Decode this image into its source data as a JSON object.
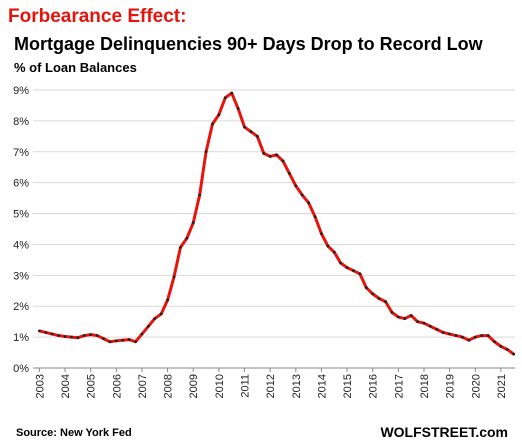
{
  "chart_data": {
    "type": "line",
    "title": "Forbearance Effect:",
    "subtitle": "Mortgage Delinquencies 90+ Days Drop to Record Low",
    "y_label": "% of Loan Balances",
    "source": "Source: New York Fed",
    "watermark": "WOLFSTREET.com",
    "x": [
      2003,
      2003.25,
      2003.5,
      2003.75,
      2004,
      2004.25,
      2004.5,
      2004.75,
      2005,
      2005.25,
      2005.5,
      2005.75,
      2006,
      2006.25,
      2006.5,
      2006.75,
      2007,
      2007.25,
      2007.5,
      2007.75,
      2008,
      2008.25,
      2008.5,
      2008.75,
      2009,
      2009.25,
      2009.5,
      2009.75,
      2010,
      2010.25,
      2010.5,
      2010.75,
      2011,
      2011.25,
      2011.5,
      2011.75,
      2012,
      2012.25,
      2012.5,
      2012.75,
      2013,
      2013.25,
      2013.5,
      2013.75,
      2014,
      2014.25,
      2014.5,
      2014.75,
      2015,
      2015.25,
      2015.5,
      2015.75,
      2016,
      2016.25,
      2016.5,
      2016.75,
      2017,
      2017.25,
      2017.5,
      2017.75,
      2018,
      2018.25,
      2018.5,
      2018.75,
      2019,
      2019.25,
      2019.5,
      2019.75,
      2020,
      2020.25,
      2020.5,
      2020.75,
      2021,
      2021.25,
      2021.5
    ],
    "series": [
      {
        "name": "Mortgage delinquencies 90+ days",
        "color": "#e8140c",
        "marker_color": "#222222",
        "values": [
          1.2,
          1.15,
          1.1,
          1.05,
          1.02,
          1.0,
          0.98,
          1.05,
          1.08,
          1.05,
          0.95,
          0.85,
          0.88,
          0.9,
          0.92,
          0.85,
          1.1,
          1.35,
          1.6,
          1.75,
          2.2,
          2.95,
          3.9,
          4.2,
          4.7,
          5.6,
          7.0,
          7.9,
          8.2,
          8.75,
          8.9,
          8.4,
          7.8,
          7.65,
          7.5,
          6.95,
          6.85,
          6.9,
          6.7,
          6.3,
          5.9,
          5.6,
          5.35,
          4.9,
          4.35,
          3.95,
          3.75,
          3.4,
          3.25,
          3.15,
          3.05,
          2.6,
          2.4,
          2.25,
          2.15,
          1.8,
          1.65,
          1.6,
          1.7,
          1.5,
          1.45,
          1.35,
          1.25,
          1.15,
          1.1,
          1.05,
          1.0,
          0.9,
          1.0,
          1.05,
          1.05,
          0.85,
          0.7,
          0.6,
          0.45
        ]
      }
    ],
    "xlim": [
      2002.75,
      2021.55
    ],
    "xticks": [
      2003,
      2004,
      2005,
      2006,
      2007,
      2008,
      2009,
      2010,
      2011,
      2012,
      2013,
      2014,
      2015,
      2016,
      2017,
      2018,
      2019,
      2020,
      2021
    ],
    "ylim": [
      0,
      9
    ],
    "yticks": [
      {
        "value": 0,
        "label": "0%"
      },
      {
        "value": 1,
        "label": "1%"
      },
      {
        "value": 2,
        "label": "2%"
      },
      {
        "value": 3,
        "label": "3%"
      },
      {
        "value": 4,
        "label": "4%"
      },
      {
        "value": 5,
        "label": "5%"
      },
      {
        "value": 6,
        "label": "6%"
      },
      {
        "value": 7,
        "label": "7%"
      },
      {
        "value": 8,
        "label": "8%"
      },
      {
        "value": 9,
        "label": "9%"
      }
    ],
    "grid": true
  }
}
